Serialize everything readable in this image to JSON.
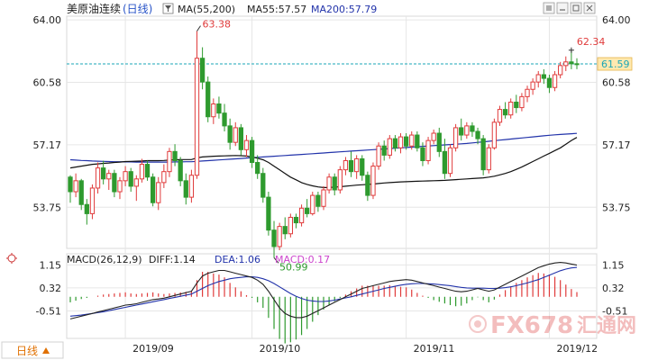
{
  "header": {
    "title": "美原油连续",
    "period": "(日线)",
    "legend": [
      {
        "label": "MA(55,200)",
        "color": "#222222"
      },
      {
        "label": "MA55:57.57",
        "color": "#222222"
      },
      {
        "label": "MA200:57.79",
        "color": "#2233aa"
      }
    ]
  },
  "macd_header": {
    "label": "MACD(26,12,9)",
    "diff": "DIFF:1.14",
    "dea": "DEA:1.06",
    "macd": "MACD:0.17",
    "colors": {
      "diff": "#222222",
      "dea": "#2233aa",
      "macd": "#cc44cc"
    }
  },
  "toolbar": {
    "period_button": "日线",
    "icons": [
      "filter-icon",
      "settings-icon",
      "minimize-icon",
      "maximize-icon",
      "close-icon"
    ]
  },
  "watermark": {
    "brand": "FX678",
    "cn": "汇通网"
  },
  "colors": {
    "up": "#e03b3b",
    "down": "#2e9a2e",
    "ma55": "#111111",
    "ma200": "#2233aa",
    "price_line": "#1aa6b7",
    "last_price_bg": "#ffe9b0"
  },
  "chart_data": [
    {
      "type": "candlestick",
      "categories": [
        "2019/09",
        "2019/10",
        "2019/11",
        "2019/12"
      ],
      "y_ticks": [
        64.0,
        60.58,
        57.17,
        53.75
      ],
      "ylim": [
        51.5,
        64.2
      ],
      "annotations": [
        {
          "label": "63.38",
          "value": 63.38,
          "kind": "high"
        },
        {
          "label": "50.99",
          "value": 50.99,
          "kind": "low"
        },
        {
          "label": "62.34",
          "value": 62.34,
          "kind": "recent-high"
        }
      ],
      "last_price": "61.59",
      "last_price_value": 61.59,
      "candles": [
        [
          55.4,
          55.5,
          54.0,
          54.6
        ],
        [
          54.6,
          55.6,
          54.3,
          55.2
        ],
        [
          55.2,
          55.3,
          53.6,
          53.9
        ],
        [
          53.9,
          54.2,
          52.8,
          53.4
        ],
        [
          53.4,
          55.0,
          53.1,
          54.8
        ],
        [
          54.8,
          56.2,
          54.5,
          55.9
        ],
        [
          55.9,
          56.3,
          55.0,
          55.3
        ],
        [
          55.3,
          55.8,
          54.7,
          55.6
        ],
        [
          55.6,
          55.8,
          54.3,
          54.6
        ],
        [
          54.6,
          55.4,
          54.2,
          55.2
        ],
        [
          55.2,
          56.0,
          54.9,
          55.7
        ],
        [
          55.7,
          55.9,
          54.6,
          54.9
        ],
        [
          54.9,
          55.5,
          54.1,
          55.3
        ],
        [
          55.3,
          56.4,
          55.1,
          56.1
        ],
        [
          56.1,
          56.3,
          55.2,
          55.4
        ],
        [
          55.4,
          55.6,
          53.8,
          54.0
        ],
        [
          54.0,
          55.4,
          53.6,
          55.1
        ],
        [
          55.1,
          56.1,
          54.8,
          55.7
        ],
        [
          55.7,
          57.0,
          55.4,
          56.8
        ],
        [
          56.8,
          57.2,
          56.0,
          56.3
        ],
        [
          56.3,
          56.5,
          54.9,
          55.2
        ],
        [
          55.2,
          55.6,
          53.9,
          54.3
        ],
        [
          54.3,
          55.8,
          54.0,
          55.5
        ],
        [
          55.5,
          63.38,
          55.3,
          61.9
        ],
        [
          61.9,
          62.5,
          60.2,
          60.6
        ],
        [
          60.6,
          60.9,
          58.4,
          58.7
        ],
        [
          58.7,
          59.7,
          58.3,
          59.4
        ],
        [
          59.4,
          59.8,
          58.6,
          58.9
        ],
        [
          58.9,
          59.4,
          57.9,
          58.2
        ],
        [
          58.2,
          58.6,
          56.9,
          57.3
        ],
        [
          57.3,
          58.4,
          57.1,
          58.1
        ],
        [
          58.1,
          58.3,
          56.6,
          56.9
        ],
        [
          56.9,
          57.7,
          56.5,
          57.4
        ],
        [
          57.4,
          57.6,
          55.9,
          56.2
        ],
        [
          56.2,
          56.6,
          55.3,
          55.6
        ],
        [
          55.6,
          55.9,
          54.0,
          54.3
        ],
        [
          54.3,
          54.6,
          52.2,
          52.5
        ],
        [
          52.5,
          53.0,
          50.99,
          51.6
        ],
        [
          51.6,
          52.9,
          51.4,
          52.7
        ],
        [
          52.7,
          53.2,
          52.0,
          52.3
        ],
        [
          52.3,
          53.4,
          52.1,
          53.2
        ],
        [
          53.2,
          53.4,
          52.6,
          52.9
        ],
        [
          52.9,
          53.9,
          52.7,
          53.7
        ],
        [
          53.7,
          54.2,
          53.2,
          53.4
        ],
        [
          53.4,
          54.6,
          53.3,
          54.4
        ],
        [
          54.4,
          54.6,
          53.5,
          53.8
        ],
        [
          53.8,
          54.9,
          53.6,
          54.7
        ],
        [
          54.7,
          55.6,
          54.5,
          55.4
        ],
        [
          55.4,
          55.6,
          54.4,
          54.7
        ],
        [
          54.7,
          56.0,
          54.5,
          55.8
        ],
        [
          55.8,
          56.5,
          55.5,
          56.3
        ],
        [
          56.3,
          56.8,
          55.4,
          55.7
        ],
        [
          55.7,
          56.6,
          55.3,
          56.4
        ],
        [
          56.4,
          56.6,
          55.2,
          55.5
        ],
        [
          55.5,
          55.7,
          54.1,
          54.4
        ],
        [
          54.4,
          56.2,
          54.2,
          56.0
        ],
        [
          56.0,
          57.3,
          55.8,
          57.1
        ],
        [
          57.1,
          57.4,
          56.3,
          56.6
        ],
        [
          56.6,
          57.7,
          56.4,
          57.5
        ],
        [
          57.5,
          57.7,
          56.8,
          57.0
        ],
        [
          57.0,
          57.8,
          56.7,
          57.6
        ],
        [
          57.6,
          57.8,
          56.9,
          57.1
        ],
        [
          57.1,
          57.9,
          56.9,
          57.7
        ],
        [
          57.7,
          57.9,
          56.8,
          57.0
        ],
        [
          57.0,
          57.3,
          56.0,
          56.3
        ],
        [
          56.3,
          57.6,
          56.1,
          57.4
        ],
        [
          57.4,
          58.0,
          57.2,
          57.8
        ],
        [
          57.8,
          58.1,
          56.5,
          56.8
        ],
        [
          56.8,
          57.5,
          55.3,
          55.6
        ],
        [
          55.6,
          57.2,
          55.4,
          57.0
        ],
        [
          57.0,
          58.3,
          56.8,
          58.1
        ],
        [
          58.1,
          58.6,
          57.4,
          57.7
        ],
        [
          57.7,
          58.4,
          57.5,
          58.2
        ],
        [
          58.2,
          58.4,
          57.6,
          57.9
        ],
        [
          57.9,
          58.1,
          57.2,
          57.5
        ],
        [
          57.5,
          57.7,
          55.5,
          55.8
        ],
        [
          55.8,
          57.2,
          55.6,
          57.0
        ],
        [
          57.0,
          58.6,
          56.9,
          58.4
        ],
        [
          58.4,
          59.3,
          58.2,
          59.1
        ],
        [
          59.1,
          59.5,
          58.6,
          58.8
        ],
        [
          58.8,
          59.7,
          58.6,
          59.5
        ],
        [
          59.5,
          59.9,
          58.9,
          59.2
        ],
        [
          59.2,
          60.0,
          59.0,
          59.8
        ],
        [
          59.8,
          60.4,
          59.5,
          60.2
        ],
        [
          60.2,
          60.8,
          59.9,
          60.6
        ],
        [
          60.6,
          61.2,
          60.3,
          61.0
        ],
        [
          61.0,
          61.3,
          60.5,
          60.8
        ],
        [
          60.8,
          61.0,
          60.0,
          60.3
        ],
        [
          60.3,
          61.2,
          60.1,
          61.0
        ],
        [
          61.0,
          61.7,
          60.8,
          61.5
        ],
        [
          61.5,
          62.0,
          61.2,
          61.7
        ],
        [
          61.7,
          62.34,
          61.3,
          61.6
        ],
        [
          61.6,
          61.9,
          61.3,
          61.59
        ]
      ],
      "ma55": [
        55.9,
        55.95,
        56.0,
        56.05,
        56.1,
        56.12,
        56.15,
        56.17,
        56.2,
        56.22,
        56.25,
        56.26,
        56.27,
        56.28,
        56.3,
        56.3,
        56.3,
        56.31,
        56.33,
        56.35,
        56.36,
        56.36,
        56.36,
        56.45,
        56.5,
        56.52,
        56.54,
        56.55,
        56.56,
        56.57,
        56.58,
        56.57,
        56.55,
        56.5,
        56.43,
        56.35,
        56.2,
        56.0,
        55.8,
        55.6,
        55.4,
        55.25,
        55.1,
        55.0,
        54.92,
        54.86,
        54.83,
        54.83,
        54.85,
        54.87,
        54.9,
        54.93,
        54.96,
        54.98,
        55.0,
        55.02,
        55.05,
        55.08,
        55.1,
        55.12,
        55.14,
        55.15,
        55.16,
        55.17,
        55.18,
        55.19,
        55.2,
        55.21,
        55.22,
        55.24,
        55.26,
        55.28,
        55.3,
        55.32,
        55.34,
        55.36,
        55.4,
        55.45,
        55.52,
        55.6,
        55.7,
        55.82,
        55.95,
        56.1,
        56.25,
        56.4,
        56.55,
        56.7,
        56.85,
        57.0,
        57.2,
        57.4,
        57.57
      ],
      "ma200": [
        56.35,
        56.33,
        56.31,
        56.3,
        56.28,
        56.27,
        56.26,
        56.25,
        56.24,
        56.24,
        56.23,
        56.23,
        56.22,
        56.22,
        56.22,
        56.22,
        56.22,
        56.22,
        56.22,
        56.23,
        56.23,
        56.24,
        56.24,
        56.26,
        56.28,
        56.3,
        56.32,
        56.34,
        56.36,
        56.38,
        56.4,
        56.42,
        56.44,
        56.46,
        56.48,
        56.5,
        56.52,
        56.54,
        56.56,
        56.58,
        56.6,
        56.62,
        56.64,
        56.66,
        56.68,
        56.7,
        56.72,
        56.74,
        56.76,
        56.78,
        56.8,
        56.82,
        56.84,
        56.86,
        56.88,
        56.9,
        56.92,
        56.94,
        56.96,
        56.98,
        57.0,
        57.02,
        57.04,
        57.06,
        57.08,
        57.1,
        57.12,
        57.14,
        57.16,
        57.18,
        57.2,
        57.22,
        57.24,
        57.27,
        57.3,
        57.33,
        57.36,
        57.39,
        57.42,
        57.45,
        57.48,
        57.51,
        57.54,
        57.57,
        57.6,
        57.63,
        57.66,
        57.69,
        57.71,
        57.73,
        57.75,
        57.77,
        57.79
      ]
    },
    {
      "type": "macd",
      "y_ticks": [
        1.15,
        0.32,
        -0.51
      ],
      "ylim": [
        -1.5,
        1.55
      ],
      "diff": [
        -0.8,
        -0.75,
        -0.7,
        -0.65,
        -0.6,
        -0.55,
        -0.5,
        -0.45,
        -0.4,
        -0.35,
        -0.3,
        -0.28,
        -0.25,
        -0.2,
        -0.15,
        -0.1,
        -0.08,
        -0.05,
        0.0,
        0.05,
        0.1,
        0.15,
        0.2,
        0.5,
        0.75,
        0.85,
        0.9,
        0.95,
        0.95,
        0.9,
        0.85,
        0.8,
        0.75,
        0.7,
        0.6,
        0.45,
        0.2,
        -0.1,
        -0.4,
        -0.6,
        -0.7,
        -0.75,
        -0.75,
        -0.7,
        -0.6,
        -0.5,
        -0.4,
        -0.3,
        -0.2,
        -0.1,
        0.0,
        0.1,
        0.2,
        0.3,
        0.35,
        0.4,
        0.45,
        0.5,
        0.55,
        0.58,
        0.6,
        0.62,
        0.6,
        0.55,
        0.5,
        0.45,
        0.4,
        0.35,
        0.3,
        0.25,
        0.2,
        0.18,
        0.2,
        0.25,
        0.3,
        0.25,
        0.2,
        0.25,
        0.35,
        0.45,
        0.55,
        0.65,
        0.75,
        0.85,
        0.95,
        1.05,
        1.12,
        1.18,
        1.22,
        1.24,
        1.22,
        1.18,
        1.14
      ],
      "dea": [
        -0.7,
        -0.68,
        -0.66,
        -0.63,
        -0.6,
        -0.57,
        -0.54,
        -0.5,
        -0.46,
        -0.42,
        -0.38,
        -0.34,
        -0.3,
        -0.26,
        -0.22,
        -0.18,
        -0.14,
        -0.1,
        -0.06,
        -0.02,
        0.02,
        0.06,
        0.1,
        0.2,
        0.3,
        0.4,
        0.48,
        0.55,
        0.6,
        0.65,
        0.68,
        0.7,
        0.72,
        0.72,
        0.7,
        0.65,
        0.58,
        0.48,
        0.36,
        0.24,
        0.12,
        0.02,
        -0.06,
        -0.12,
        -0.15,
        -0.17,
        -0.17,
        -0.15,
        -0.12,
        -0.08,
        -0.04,
        0.0,
        0.05,
        0.1,
        0.15,
        0.2,
        0.25,
        0.3,
        0.34,
        0.38,
        0.42,
        0.45,
        0.47,
        0.48,
        0.48,
        0.47,
        0.46,
        0.44,
        0.42,
        0.4,
        0.37,
        0.34,
        0.32,
        0.31,
        0.31,
        0.31,
        0.3,
        0.3,
        0.31,
        0.33,
        0.36,
        0.4,
        0.45,
        0.5,
        0.56,
        0.62,
        0.7,
        0.78,
        0.86,
        0.94,
        1.0,
        1.04,
        1.06
      ],
      "macd": [
        -0.2,
        -0.14,
        -0.08,
        -0.04,
        0.0,
        0.04,
        0.08,
        0.1,
        0.12,
        0.14,
        0.16,
        0.12,
        0.1,
        0.12,
        0.14,
        0.16,
        0.12,
        0.1,
        0.12,
        0.14,
        0.16,
        0.18,
        0.2,
        0.6,
        0.9,
        0.9,
        0.84,
        0.8,
        0.7,
        0.5,
        0.34,
        0.2,
        0.06,
        -0.04,
        -0.2,
        -0.4,
        -0.76,
        -1.16,
        -1.52,
        -1.68,
        -1.64,
        -1.54,
        -1.38,
        -1.16,
        -0.9,
        -0.66,
        -0.46,
        -0.3,
        -0.16,
        -0.04,
        0.08,
        0.2,
        0.3,
        0.4,
        0.4,
        0.4,
        0.4,
        0.4,
        0.42,
        0.4,
        0.36,
        0.34,
        0.26,
        0.14,
        0.04,
        -0.04,
        -0.12,
        -0.18,
        -0.24,
        -0.3,
        -0.34,
        -0.32,
        -0.24,
        -0.12,
        -0.02,
        -0.12,
        -0.2,
        -0.1,
        0.08,
        0.24,
        0.38,
        0.5,
        0.6,
        0.7,
        0.78,
        0.86,
        0.84,
        0.8,
        0.72,
        0.6,
        0.44,
        0.28,
        0.17
      ]
    }
  ]
}
